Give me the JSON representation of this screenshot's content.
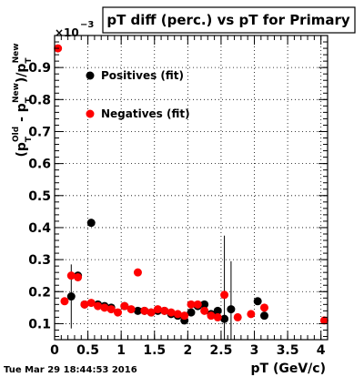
{
  "stamp": "Tue Mar 29 18:44:53 2016",
  "chart_data": {
    "type": "scatter",
    "title": "pT diff (perc.) vs pT for Primary",
    "xlabel": "pT (GeV/c)",
    "ylabel_main": "(p",
    "ylabel_sup_old": "Old",
    "ylabel_sub_t1": "T",
    "ylabel_minus": " - p",
    "ylabel_sup_new1": "New",
    "ylabel_sub_t2": "T",
    "ylabel_div": ")/p",
    "ylabel_sup_new2": "New",
    "ylabel_sub_t3": "T",
    "y_multiplier_base": "×10",
    "y_multiplier_exp": "−3",
    "xlim": [
      0,
      4.1
    ],
    "ylim": [
      0.05,
      1.0
    ],
    "x_ticks": [
      "0",
      "0.5",
      "1",
      "1.5",
      "2",
      "2.5",
      "3",
      "3.5",
      "4"
    ],
    "x_tick_values": [
      0,
      0.5,
      1,
      1.5,
      2,
      2.5,
      3,
      3.5,
      4
    ],
    "y_ticks": [
      "0.1",
      "0.2",
      "0.3",
      "0.4",
      "0.5",
      "0.6",
      "0.7",
      "0.8",
      "0.9"
    ],
    "y_tick_values": [
      0.1,
      0.2,
      0.3,
      0.4,
      0.5,
      0.6,
      0.7,
      0.8,
      0.9
    ],
    "grid": "dotted",
    "legend_position": "top-left",
    "series": [
      {
        "name": "Positives (fit)",
        "color": "#000000",
        "points": [
          {
            "x": 0.25,
            "y": 0.185,
            "err": 0.1
          },
          {
            "x": 0.35,
            "y": 0.25,
            "err": 0.01
          },
          {
            "x": 0.45,
            "y": 0.16,
            "err": 0.005
          },
          {
            "x": 0.55,
            "y": 0.415,
            "err": 0.005
          },
          {
            "x": 0.65,
            "y": 0.16,
            "err": 0.005
          },
          {
            "x": 0.75,
            "y": 0.155,
            "err": 0.005
          },
          {
            "x": 0.85,
            "y": 0.15,
            "err": 0.005
          },
          {
            "x": 1.05,
            "y": 0.155,
            "err": 0.005
          },
          {
            "x": 1.25,
            "y": 0.14,
            "err": 0.005
          },
          {
            "x": 1.35,
            "y": 0.14,
            "err": 0.005
          },
          {
            "x": 1.45,
            "y": 0.135,
            "err": 0.005
          },
          {
            "x": 1.55,
            "y": 0.14,
            "err": 0.005
          },
          {
            "x": 1.65,
            "y": 0.14,
            "err": 0.005
          },
          {
            "x": 1.75,
            "y": 0.13,
            "err": 0.005
          },
          {
            "x": 1.85,
            "y": 0.125,
            "err": 0.005
          },
          {
            "x": 1.95,
            "y": 0.11,
            "err": 0.005
          },
          {
            "x": 2.05,
            "y": 0.135,
            "err": 0.005
          },
          {
            "x": 2.15,
            "y": 0.155,
            "err": 0.005
          },
          {
            "x": 2.25,
            "y": 0.16,
            "err": 0.005
          },
          {
            "x": 2.35,
            "y": 0.13,
            "err": 0.005
          },
          {
            "x": 2.45,
            "y": 0.14,
            "err": 0.005
          },
          {
            "x": 2.55,
            "y": 0.115,
            "err": 0.26
          },
          {
            "x": 2.65,
            "y": 0.145,
            "err": 0.15
          },
          {
            "x": 3.05,
            "y": 0.17,
            "err": 0.01
          },
          {
            "x": 3.15,
            "y": 0.125,
            "err": 0.01
          }
        ]
      },
      {
        "name": "Negatives (fit)",
        "color": "#ff0000",
        "points": [
          {
            "x": 0.05,
            "y": 0.96,
            "err": 0.005
          },
          {
            "x": 0.15,
            "y": 0.17,
            "err": 0.005
          },
          {
            "x": 0.25,
            "y": 0.25,
            "err": 0.005
          },
          {
            "x": 0.35,
            "y": 0.245,
            "err": 0.005
          },
          {
            "x": 0.45,
            "y": 0.16,
            "err": 0.005
          },
          {
            "x": 0.55,
            "y": 0.165,
            "err": 0.005
          },
          {
            "x": 0.65,
            "y": 0.155,
            "err": 0.005
          },
          {
            "x": 0.75,
            "y": 0.15,
            "err": 0.005
          },
          {
            "x": 0.85,
            "y": 0.145,
            "err": 0.005
          },
          {
            "x": 0.95,
            "y": 0.135,
            "err": 0.005
          },
          {
            "x": 1.05,
            "y": 0.155,
            "err": 0.005
          },
          {
            "x": 1.15,
            "y": 0.145,
            "err": 0.005
          },
          {
            "x": 1.25,
            "y": 0.26,
            "err": 0.005
          },
          {
            "x": 1.35,
            "y": 0.14,
            "err": 0.005
          },
          {
            "x": 1.45,
            "y": 0.135,
            "err": 0.005
          },
          {
            "x": 1.55,
            "y": 0.145,
            "err": 0.005
          },
          {
            "x": 1.65,
            "y": 0.14,
            "err": 0.005
          },
          {
            "x": 1.75,
            "y": 0.135,
            "err": 0.005
          },
          {
            "x": 1.85,
            "y": 0.13,
            "err": 0.005
          },
          {
            "x": 1.95,
            "y": 0.125,
            "err": 0.005
          },
          {
            "x": 2.05,
            "y": 0.16,
            "err": 0.005
          },
          {
            "x": 2.15,
            "y": 0.16,
            "err": 0.005
          },
          {
            "x": 2.25,
            "y": 0.14,
            "err": 0.005
          },
          {
            "x": 2.35,
            "y": 0.125,
            "err": 0.005
          },
          {
            "x": 2.45,
            "y": 0.12,
            "err": 0.005
          },
          {
            "x": 2.55,
            "y": 0.19,
            "err": 0.005
          },
          {
            "x": 2.75,
            "y": 0.12,
            "err": 0.005
          },
          {
            "x": 2.95,
            "y": 0.13,
            "err": 0.005
          },
          {
            "x": 3.15,
            "y": 0.15,
            "err": 0.005
          },
          {
            "x": 4.05,
            "y": 0.11,
            "err": 0.005
          }
        ]
      }
    ]
  }
}
